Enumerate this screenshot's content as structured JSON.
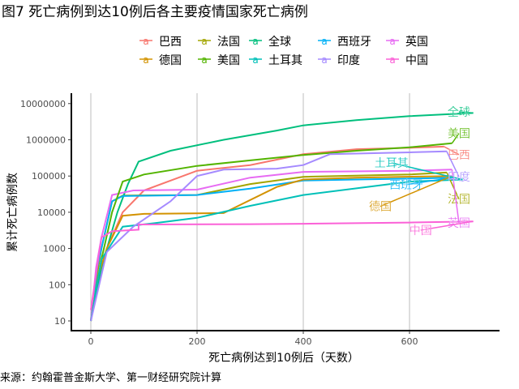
{
  "chart_data": {
    "type": "line",
    "title": "图7 死亡病例到达10例后各主要疫情国家死亡病例",
    "xlabel": "死亡病例达到10例后（天数）",
    "ylabel": "累计死亡病例数",
    "source": "来源：约翰霍普金斯大学、第一财经研究院计算",
    "xlim": [
      -35,
      770
    ],
    "ylog": true,
    "ylim": [
      6,
      13000000
    ],
    "xticks": [
      0,
      200,
      400,
      600
    ],
    "xtick_labels": [
      "0",
      "200",
      "400",
      "600"
    ],
    "yticks": [
      10,
      100,
      1000,
      10000,
      100000,
      1000000,
      10000000
    ],
    "ytick_labels": [
      "10",
      "100",
      "1000",
      "10000",
      "100000",
      "1000000",
      "10000000"
    ],
    "grid": "vertical major",
    "legend_position": "top",
    "legend_key": "a",
    "series": [
      {
        "name": "巴西",
        "color": "#F8766D",
        "label_at": [
          693,
          390000
        ],
        "points": [
          [
            0,
            10
          ],
          [
            15,
            150
          ],
          [
            30,
            1000
          ],
          [
            60,
            10000
          ],
          [
            100,
            40000
          ],
          [
            200,
            140000
          ],
          [
            300,
            200000
          ],
          [
            400,
            400000
          ],
          [
            500,
            550000
          ],
          [
            600,
            600000
          ],
          [
            665,
            650000
          ]
        ]
      },
      {
        "name": "法国",
        "color": "#A3A500",
        "label_at": [
          693,
          23000
        ],
        "points": [
          [
            0,
            10
          ],
          [
            12,
            200
          ],
          [
            20,
            1000
          ],
          [
            40,
            20000
          ],
          [
            60,
            29000
          ],
          [
            200,
            30000
          ],
          [
            300,
            60000
          ],
          [
            400,
            95000
          ],
          [
            600,
            110000
          ],
          [
            670,
            125000
          ]
        ]
      },
      {
        "name": "全球",
        "color": "#00BF7D",
        "label_at": [
          693,
          5900000
        ],
        "points": [
          [
            0,
            10
          ],
          [
            20,
            300
          ],
          [
            50,
            10000
          ],
          [
            70,
            60000
          ],
          [
            90,
            250000
          ],
          [
            150,
            500000
          ],
          [
            250,
            1000000
          ],
          [
            350,
            1800000
          ],
          [
            400,
            2500000
          ],
          [
            500,
            3500000
          ],
          [
            600,
            4500000
          ],
          [
            720,
            5500000
          ]
        ]
      },
      {
        "name": "西班牙",
        "color": "#00B0F6",
        "label_at": [
          594,
          58000
        ],
        "points": [
          [
            0,
            10
          ],
          [
            12,
            300
          ],
          [
            20,
            1000
          ],
          [
            40,
            20000
          ],
          [
            60,
            28000
          ],
          [
            200,
            30000
          ],
          [
            300,
            45000
          ],
          [
            400,
            75000
          ],
          [
            500,
            80000
          ],
          [
            600,
            85000
          ],
          [
            680,
            90000
          ]
        ]
      },
      {
        "name": "英国",
        "color": "#E76BF3",
        "label_at": [
          693,
          5100
        ],
        "points": [
          [
            0,
            10
          ],
          [
            10,
            300
          ],
          [
            20,
            2000
          ],
          [
            40,
            30000
          ],
          [
            80,
            40000
          ],
          [
            200,
            42000
          ],
          [
            300,
            90000
          ],
          [
            400,
            130000
          ],
          [
            600,
            140000
          ],
          [
            680,
            150000
          ]
        ]
      },
      {
        "name": "德国",
        "color": "#D39200",
        "label_at": [
          545,
          14500
        ],
        "points": [
          [
            0,
            10
          ],
          [
            15,
            200
          ],
          [
            30,
            1000
          ],
          [
            60,
            8000
          ],
          [
            100,
            9000
          ],
          [
            250,
            9500
          ],
          [
            350,
            50000
          ],
          [
            400,
            80000
          ],
          [
            500,
            90000
          ],
          [
            680,
            100000
          ]
        ]
      },
      {
        "name": "美国",
        "color": "#53B400",
        "label_at": [
          693,
          1500000
        ],
        "points": [
          [
            0,
            10
          ],
          [
            20,
            500
          ],
          [
            40,
            10000
          ],
          [
            60,
            70000
          ],
          [
            100,
            110000
          ],
          [
            200,
            190000
          ],
          [
            300,
            270000
          ],
          [
            400,
            380000
          ],
          [
            500,
            500000
          ],
          [
            600,
            620000
          ],
          [
            680,
            800000
          ]
        ]
      },
      {
        "name": "土耳其",
        "color": "#00C0B8",
        "label_at": [
          566,
          230000
        ],
        "points": [
          [
            0,
            10
          ],
          [
            20,
            500
          ],
          [
            60,
            4000
          ],
          [
            120,
            5000
          ],
          [
            200,
            7000
          ],
          [
            300,
            15000
          ],
          [
            400,
            30000
          ],
          [
            600,
            70000
          ],
          [
            700,
            80000
          ]
        ]
      },
      {
        "name": "印度",
        "color": "#A58AFF",
        "label_at": [
          693,
          95000
        ],
        "points": [
          [
            0,
            10
          ],
          [
            30,
            800
          ],
          [
            80,
            4000
          ],
          [
            150,
            20000
          ],
          [
            200,
            100000
          ],
          [
            250,
            150000
          ],
          [
            350,
            160000
          ],
          [
            400,
            200000
          ],
          [
            450,
            400000
          ],
          [
            600,
            450000
          ],
          [
            670,
            480000
          ]
        ]
      },
      {
        "name": "中国",
        "color": "#FB61D7",
        "label_at": [
          621,
          3200
        ],
        "points": [
          [
            0,
            20
          ],
          [
            20,
            2000
          ],
          [
            40,
            3000
          ],
          [
            90,
            3300
          ],
          [
            90,
            4600
          ],
          [
            300,
            4700
          ],
          [
            400,
            4800
          ],
          [
            600,
            5200
          ],
          [
            720,
            5600
          ]
        ]
      }
    ]
  }
}
